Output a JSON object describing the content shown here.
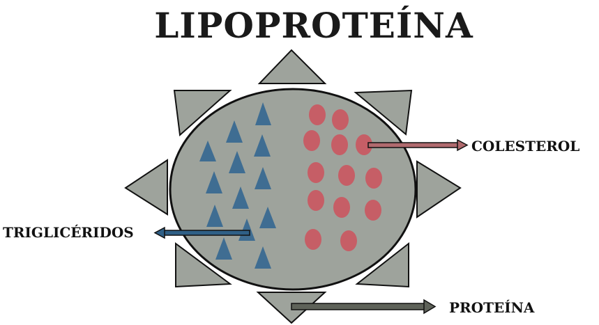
{
  "title": "LIPOPROTEÍNA",
  "labels": {
    "cholesterol": "COLESTEROL",
    "triglycerides": "TRIGLICÉRIDOS",
    "protein": "PROTEÍNA"
  },
  "colors": {
    "core_fill": "#9ea39c",
    "core_stroke": "#111111",
    "protein_fill": "#9ea39c",
    "triangle_fill": "#3f6d92",
    "circle_fill": "#c65e66",
    "cholesterol_arrow": "#b06a6e",
    "triglycerides_arrow": "#2f5f86",
    "protein_arrow": "#5e6259"
  },
  "icons": {
    "triglyceride_particle": "triangle-icon",
    "cholesterol_particle": "circle-icon",
    "protein_spike": "triangle-icon"
  }
}
